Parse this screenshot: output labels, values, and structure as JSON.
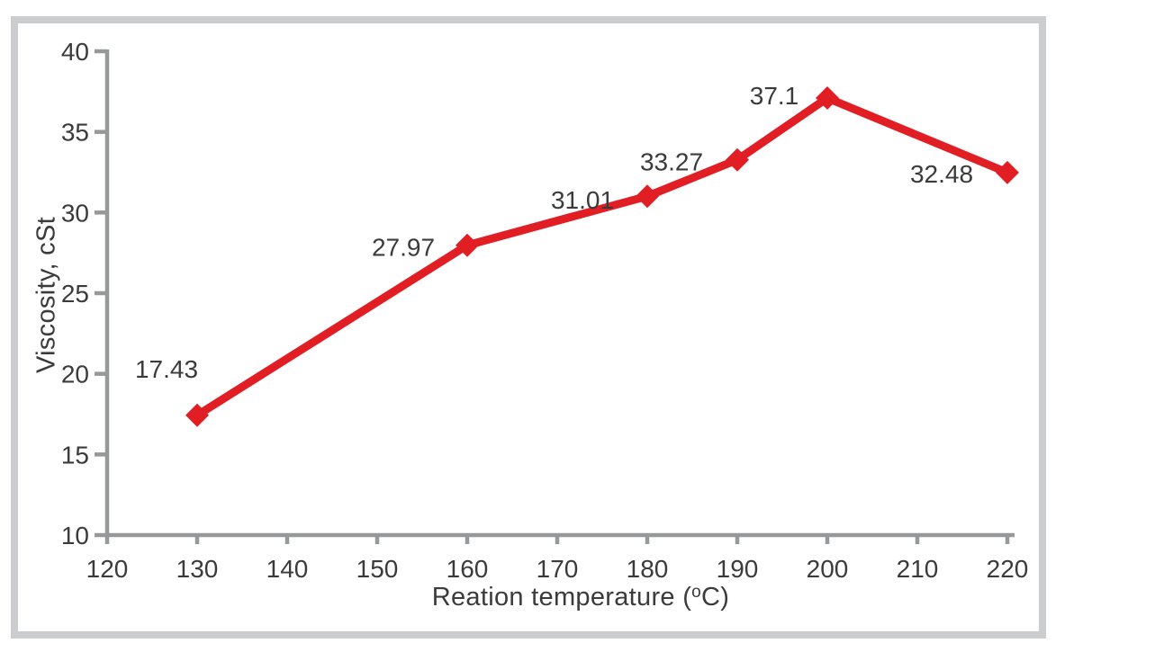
{
  "page": {
    "background_color": "#ffffff",
    "frame_border_color": "#cbcdce"
  },
  "chart_data": {
    "type": "line",
    "title": "",
    "xlabel": {
      "prefix": "Reation temperature (",
      "sup": "o",
      "suffix": "C)"
    },
    "ylabel": "Viscosity, cSt",
    "xlim": [
      120,
      220
    ],
    "ylim": [
      10,
      40
    ],
    "xticks": [
      120,
      130,
      140,
      150,
      160,
      170,
      180,
      190,
      200,
      210,
      220
    ],
    "yticks": [
      10,
      15,
      20,
      25,
      30,
      35,
      40
    ],
    "grid": false,
    "legend": "none",
    "axis_color": "#97989a",
    "text_color": "#3b3b3b",
    "marker": "diamond",
    "series": [
      {
        "name": "Viscosity",
        "color": "#e21e25",
        "x": [
          130,
          160,
          180,
          190,
          200,
          220
        ],
        "y": [
          17.43,
          27.97,
          31.01,
          33.27,
          37.1,
          32.48
        ],
        "point_labels": [
          "17.43",
          "27.97",
          "31.01",
          "33.27",
          "37.1",
          "32.48"
        ],
        "label_offsets": [
          [
            -34,
            -52
          ],
          [
            -71,
            2
          ],
          [
            -72,
            4
          ],
          [
            -73,
            2
          ],
          [
            -59,
            -3
          ],
          [
            -73,
            1
          ]
        ]
      }
    ]
  }
}
